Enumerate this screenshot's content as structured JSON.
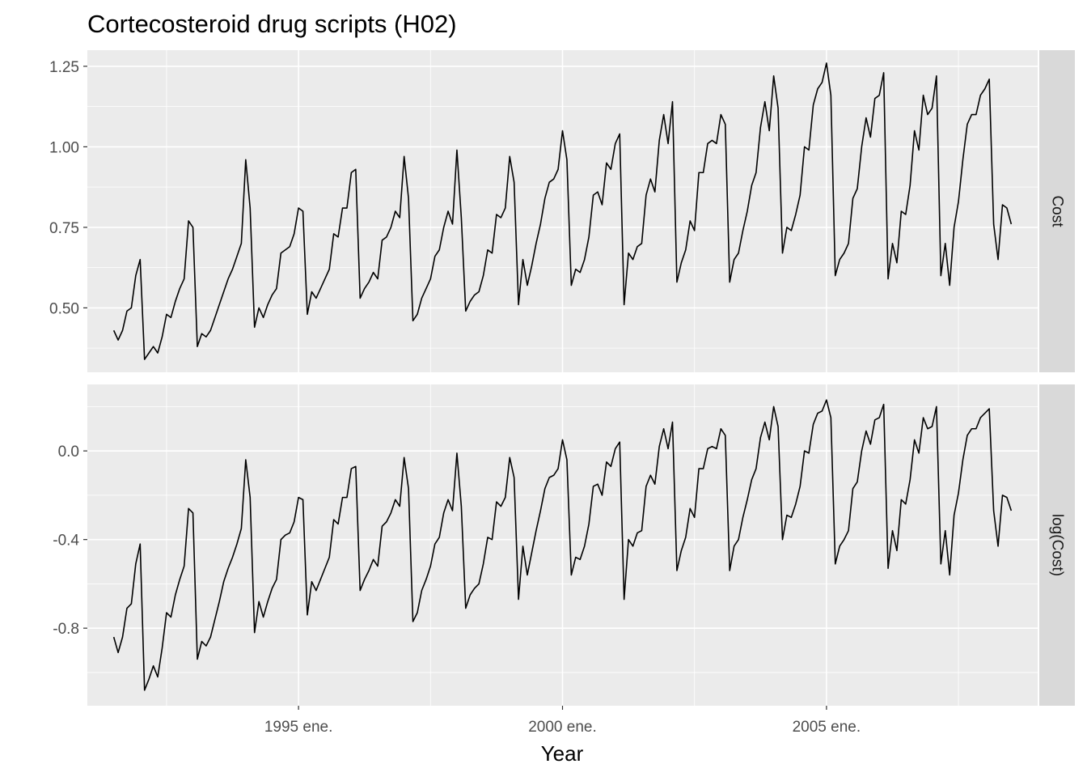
{
  "chart_data": {
    "type": "line",
    "title": "Cortecosteroid drug scripts (H02)",
    "xlabel": "Year",
    "ylabel": "",
    "x_start": "1991-07",
    "x_end": "2008-06",
    "x_frequency": "monthly",
    "xlim": [
      "1991-01",
      "2009-01"
    ],
    "x_tick_values": [
      "1995-01",
      "2000-01",
      "2005-01"
    ],
    "x_tick_labels": [
      "1995 ene.",
      "2000 ene.",
      "2005 ene."
    ],
    "x_minor_gridlines": [
      "1992-07",
      "1997-07",
      "2002-07",
      "2007-07"
    ],
    "grid": true,
    "facets": [
      {
        "name": "Cost",
        "strip_label": "Cost",
        "ylim": [
          0.3,
          1.3
        ],
        "y_tick_values": [
          0.5,
          0.75,
          1.0,
          1.25
        ],
        "y_tick_labels": [
          "0.50",
          "0.75",
          "1.00",
          "1.25"
        ],
        "y_minor_gridlines": [
          0.375,
          0.625,
          0.875,
          1.125
        ],
        "values": [
          0.43,
          0.4,
          0.43,
          0.49,
          0.5,
          0.6,
          0.65,
          0.34,
          0.36,
          0.38,
          0.36,
          0.41,
          0.48,
          0.47,
          0.52,
          0.56,
          0.59,
          0.77,
          0.75,
          0.38,
          0.42,
          0.41,
          0.43,
          0.47,
          0.51,
          0.55,
          0.59,
          0.62,
          0.66,
          0.7,
          0.96,
          0.81,
          0.44,
          0.5,
          0.47,
          0.51,
          0.54,
          0.56,
          0.67,
          0.68,
          0.69,
          0.73,
          0.81,
          0.8,
          0.48,
          0.55,
          0.53,
          0.56,
          0.59,
          0.62,
          0.73,
          0.72,
          0.81,
          0.81,
          0.92,
          0.93,
          0.53,
          0.56,
          0.58,
          0.61,
          0.59,
          0.71,
          0.72,
          0.75,
          0.8,
          0.78,
          0.97,
          0.84,
          0.46,
          0.48,
          0.53,
          0.56,
          0.59,
          0.66,
          0.68,
          0.75,
          0.8,
          0.76,
          0.99,
          0.78,
          0.49,
          0.52,
          0.54,
          0.55,
          0.6,
          0.68,
          0.67,
          0.79,
          0.78,
          0.81,
          0.97,
          0.89,
          0.51,
          0.65,
          0.57,
          0.63,
          0.7,
          0.76,
          0.84,
          0.89,
          0.9,
          0.93,
          1.05,
          0.96,
          0.57,
          0.62,
          0.61,
          0.65,
          0.72,
          0.85,
          0.86,
          0.82,
          0.95,
          0.93,
          1.01,
          1.04,
          0.51,
          0.67,
          0.65,
          0.69,
          0.7,
          0.85,
          0.9,
          0.86,
          1.02,
          1.1,
          1.01,
          1.14,
          0.58,
          0.64,
          0.68,
          0.77,
          0.74,
          0.92,
          0.92,
          1.01,
          1.02,
          1.01,
          1.1,
          1.07,
          0.58,
          0.65,
          0.67,
          0.74,
          0.8,
          0.88,
          0.92,
          1.06,
          1.14,
          1.05,
          1.22,
          1.12,
          0.67,
          0.75,
          0.74,
          0.79,
          0.85,
          1.0,
          0.99,
          1.13,
          1.18,
          1.2,
          1.26,
          1.16,
          0.6,
          0.65,
          0.67,
          0.7,
          0.84,
          0.87,
          1.0,
          1.09,
          1.03,
          1.15,
          1.16,
          1.23,
          0.59,
          0.7,
          0.64,
          0.8,
          0.79,
          0.88,
          1.05,
          0.99,
          1.16,
          1.1,
          1.12,
          1.22,
          0.6,
          0.7,
          0.57,
          0.75,
          0.83,
          0.96,
          1.07,
          1.1,
          1.1,
          1.16,
          1.18,
          1.21,
          0.76,
          0.65,
          0.82,
          0.81,
          0.76
        ]
      },
      {
        "name": "log(Cost)",
        "strip_label": "log(Cost)",
        "ylim": [
          -1.15,
          0.3
        ],
        "y_tick_values": [
          -0.8,
          -0.4,
          0.0
        ],
        "y_tick_labels": [
          "-0.8",
          "-0.4",
          "0.0"
        ],
        "y_minor_gridlines": [
          -1.0,
          -0.6,
          -0.2,
          0.2
        ],
        "values": [
          -0.84,
          -0.91,
          -0.84,
          -0.71,
          -0.69,
          -0.51,
          -0.42,
          -1.08,
          -1.03,
          -0.97,
          -1.02,
          -0.89,
          -0.73,
          -0.75,
          -0.65,
          -0.58,
          -0.52,
          -0.26,
          -0.28,
          -0.94,
          -0.86,
          -0.88,
          -0.84,
          -0.76,
          -0.68,
          -0.59,
          -0.53,
          -0.48,
          -0.42,
          -0.35,
          -0.04,
          -0.21,
          -0.82,
          -0.68,
          -0.75,
          -0.68,
          -0.62,
          -0.58,
          -0.4,
          -0.38,
          -0.37,
          -0.32,
          -0.21,
          -0.22,
          -0.74,
          -0.59,
          -0.63,
          -0.58,
          -0.53,
          -0.48,
          -0.31,
          -0.33,
          -0.21,
          -0.21,
          -0.08,
          -0.07,
          -0.63,
          -0.58,
          -0.54,
          -0.49,
          -0.52,
          -0.34,
          -0.32,
          -0.28,
          -0.22,
          -0.25,
          -0.03,
          -0.17,
          -0.77,
          -0.73,
          -0.63,
          -0.58,
          -0.52,
          -0.42,
          -0.39,
          -0.28,
          -0.22,
          -0.27,
          -0.01,
          -0.25,
          -0.71,
          -0.65,
          -0.62,
          -0.6,
          -0.51,
          -0.39,
          -0.4,
          -0.23,
          -0.25,
          -0.21,
          -0.03,
          -0.12,
          -0.67,
          -0.43,
          -0.56,
          -0.46,
          -0.36,
          -0.27,
          -0.17,
          -0.12,
          -0.11,
          -0.08,
          0.05,
          -0.04,
          -0.56,
          -0.48,
          -0.49,
          -0.43,
          -0.33,
          -0.16,
          -0.15,
          -0.2,
          -0.05,
          -0.07,
          0.01,
          0.04,
          -0.67,
          -0.4,
          -0.43,
          -0.37,
          -0.36,
          -0.16,
          -0.11,
          -0.15,
          0.02,
          0.1,
          0.01,
          0.13,
          -0.54,
          -0.45,
          -0.39,
          -0.26,
          -0.3,
          -0.08,
          -0.08,
          0.01,
          0.02,
          0.01,
          0.1,
          0.07,
          -0.54,
          -0.43,
          -0.4,
          -0.3,
          -0.22,
          -0.13,
          -0.08,
          0.06,
          0.13,
          0.05,
          0.2,
          0.11,
          -0.4,
          -0.29,
          -0.3,
          -0.24,
          -0.16,
          0.0,
          -0.01,
          0.12,
          0.17,
          0.18,
          0.23,
          0.15,
          -0.51,
          -0.43,
          -0.4,
          -0.36,
          -0.17,
          -0.14,
          0.0,
          0.09,
          0.03,
          0.14,
          0.15,
          0.21,
          -0.53,
          -0.36,
          -0.45,
          -0.22,
          -0.24,
          -0.13,
          0.05,
          -0.01,
          0.15,
          0.1,
          0.11,
          0.2,
          -0.51,
          -0.36,
          -0.56,
          -0.29,
          -0.19,
          -0.04,
          0.07,
          0.1,
          0.1,
          0.15,
          0.17,
          0.19,
          -0.27,
          -0.43,
          -0.2,
          -0.21,
          -0.27
        ]
      }
    ]
  }
}
